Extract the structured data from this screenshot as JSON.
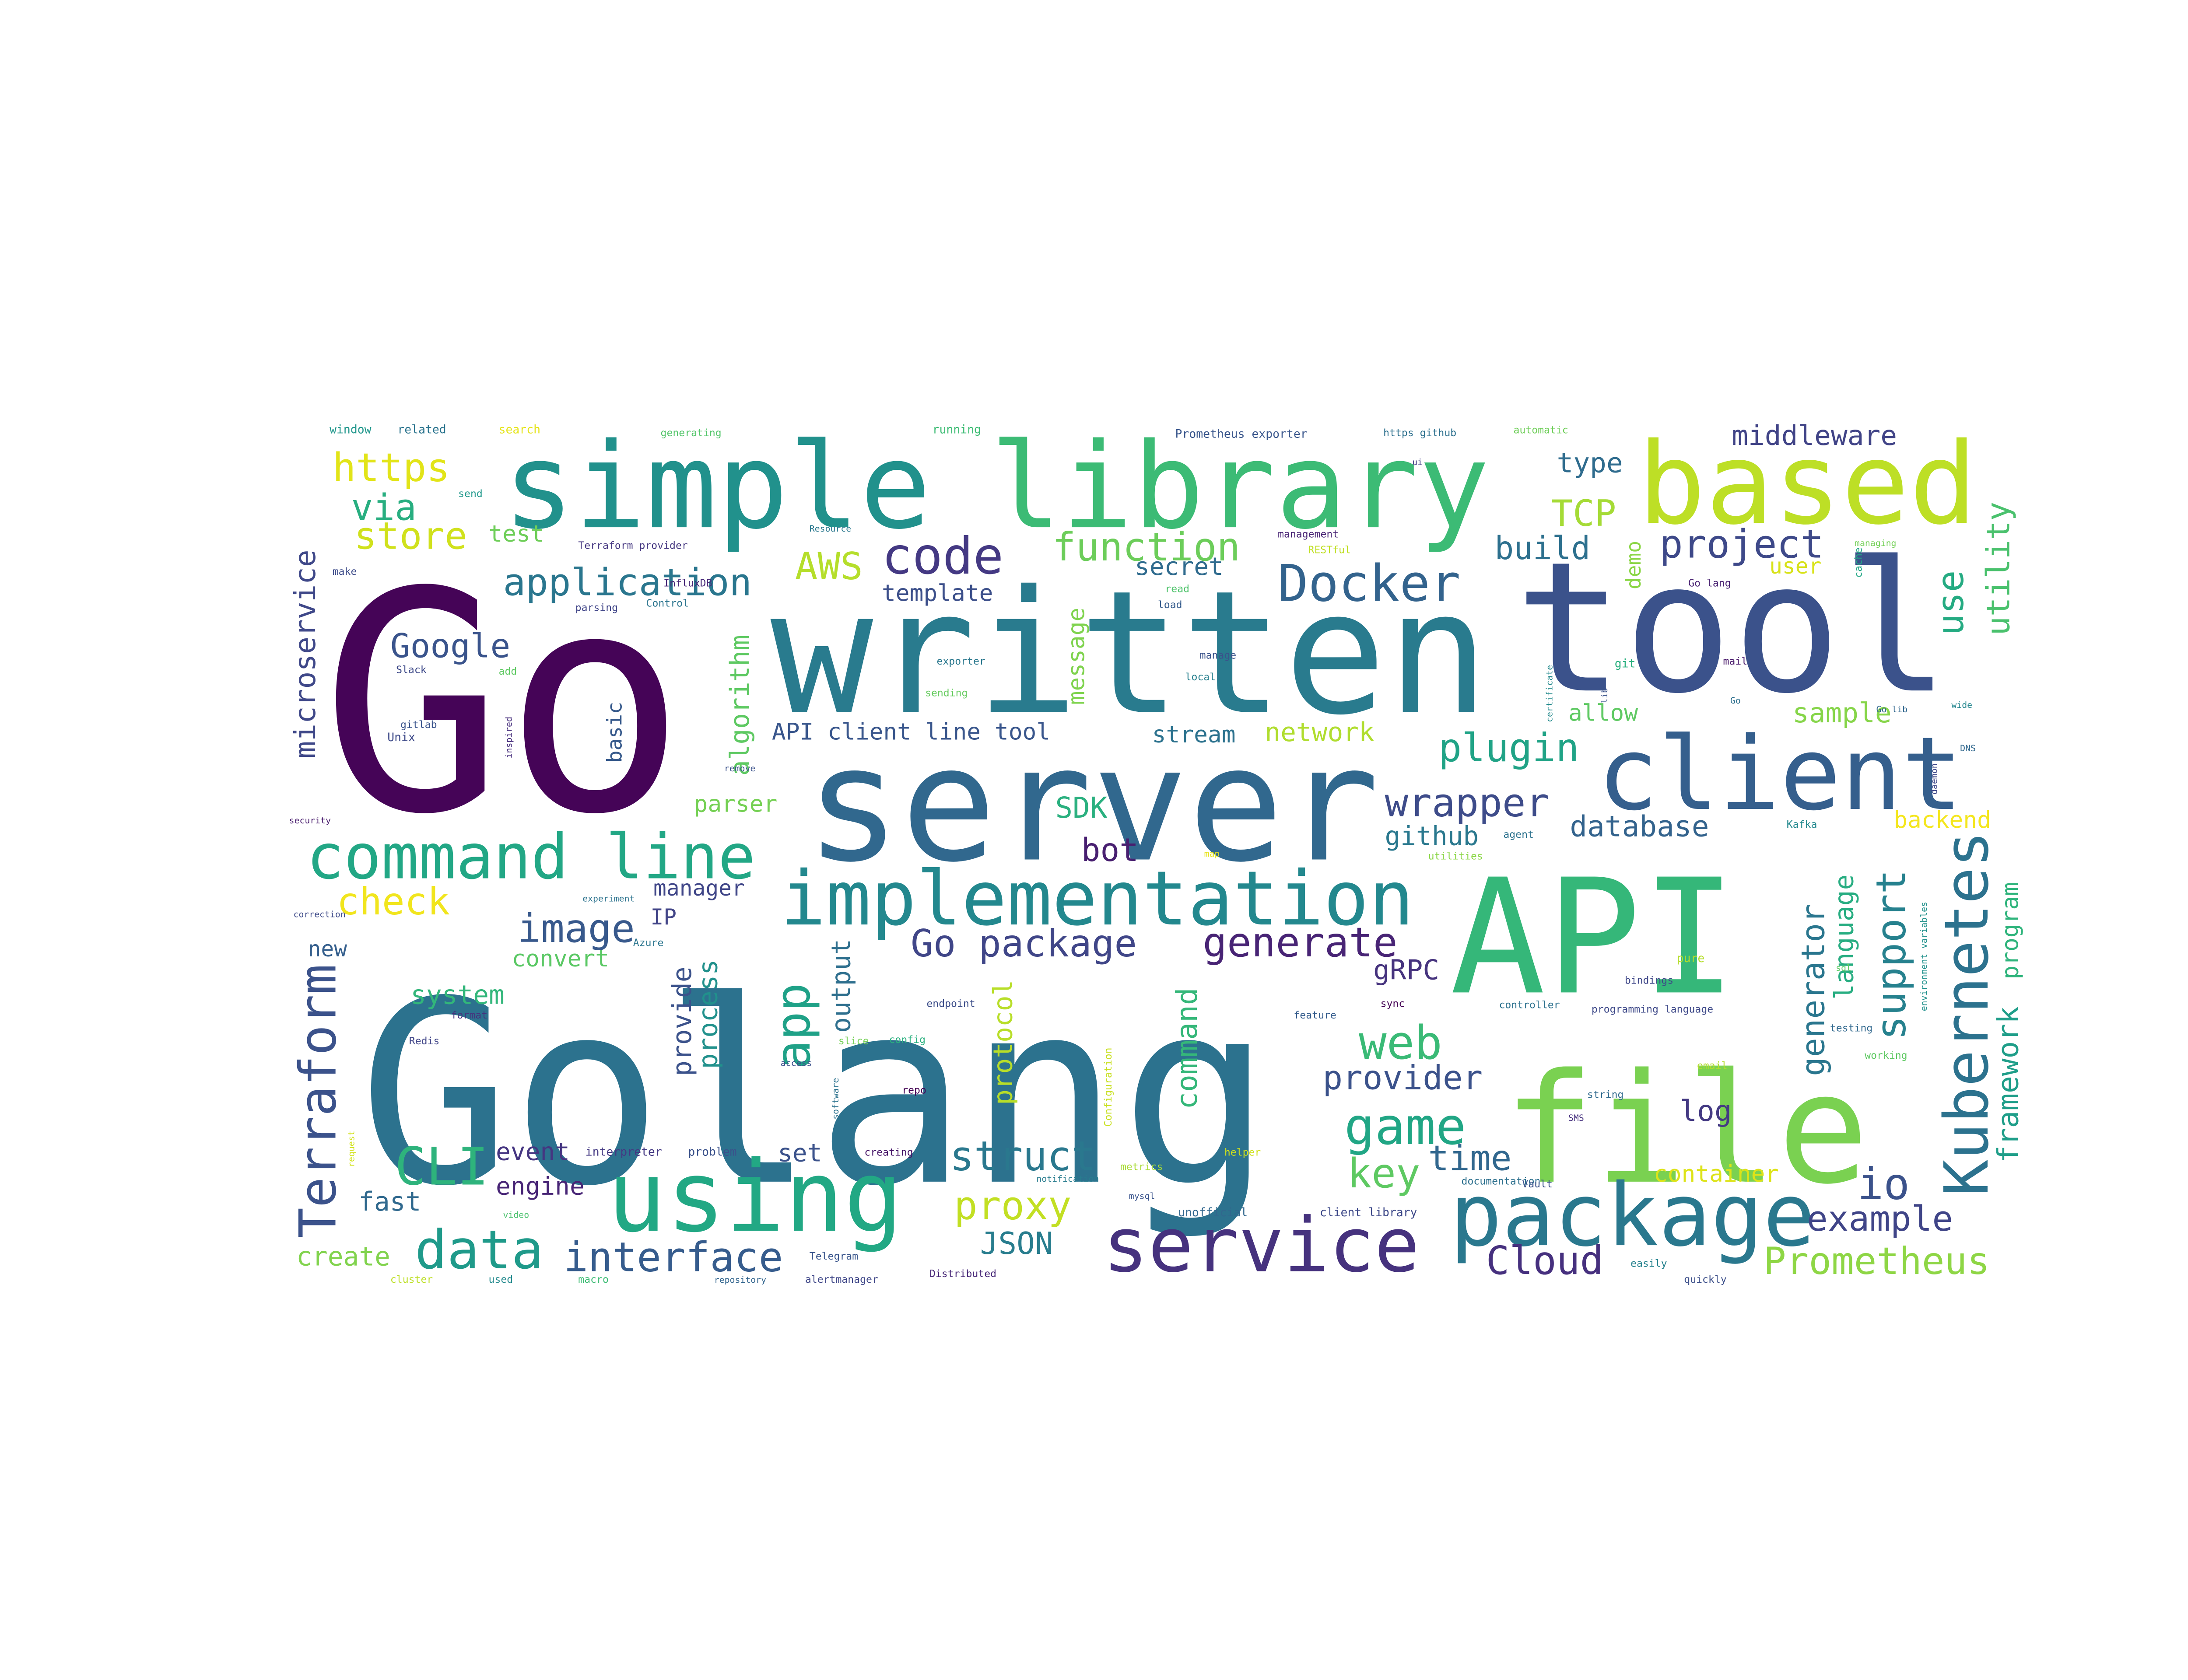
{
  "word_cloud": {
    "words": [
      {
        "text": "Go",
        "color": "#450457"
      },
      {
        "text": "Golang",
        "color": "#2c728e"
      },
      {
        "text": "written",
        "color": "#297b8e"
      },
      {
        "text": "tool",
        "color": "#3b528b"
      },
      {
        "text": "API",
        "color": "#35b779"
      },
      {
        "text": "server",
        "color": "#31688e"
      },
      {
        "text": "simple",
        "color": "#21918c"
      },
      {
        "text": "library",
        "color": "#3cbb75"
      },
      {
        "text": "based",
        "color": "#bddf26"
      },
      {
        "text": "file",
        "color": "#7ad151"
      },
      {
        "text": "client",
        "color": "#355f8d"
      },
      {
        "text": "using",
        "color": "#22a884"
      },
      {
        "text": "package",
        "color": "#2a788e"
      },
      {
        "text": "service",
        "color": "#46327e"
      },
      {
        "text": "implementation",
        "color": "#23888e"
      },
      {
        "text": "command line",
        "color": "#22a785"
      },
      {
        "text": "Kubernetes",
        "color": "#2c728e"
      },
      {
        "text": "Terraform",
        "color": "#3b528b"
      },
      {
        "text": "Docker",
        "color": "#33638d"
      },
      {
        "text": "code",
        "color": "#443983"
      },
      {
        "text": "data",
        "color": "#1f9a8a"
      },
      {
        "text": "CLI",
        "color": "#2eb37c"
      },
      {
        "text": "web",
        "color": "#3aba76"
      },
      {
        "text": "game",
        "color": "#21a685"
      },
      {
        "text": "app",
        "color": "#1fa187"
      },
      {
        "text": "application",
        "color": "#2a768e"
      },
      {
        "text": "Go package",
        "color": "#404688"
      },
      {
        "text": "generate",
        "color": "#482475"
      },
      {
        "text": "function",
        "color": "#6ccd5a"
      },
      {
        "text": "interface",
        "color": "#365c8d"
      },
      {
        "text": "support",
        "color": "#26818e"
      },
      {
        "text": "https",
        "color": "#e2e418"
      },
      {
        "text": "plugin",
        "color": "#20a386"
      },
      {
        "text": "wrapper",
        "color": "#3e4c8a"
      },
      {
        "text": "project",
        "color": "#3e4989"
      },
      {
        "text": "proxy",
        "color": "#c2df23"
      },
      {
        "text": "struct",
        "color": "#2a788e"
      },
      {
        "text": "Cloud",
        "color": "#46307e"
      },
      {
        "text": "Prometheus",
        "color": "#8ed645"
      },
      {
        "text": "example",
        "color": "#404588"
      },
      {
        "text": "image",
        "color": "#38598c"
      },
      {
        "text": "check",
        "color": "#f1e51d"
      },
      {
        "text": "store",
        "color": "#d0e11c"
      },
      {
        "text": "via",
        "color": "#28ae80"
      },
      {
        "text": "Google",
        "color": "#3a548c"
      },
      {
        "text": "microservice",
        "color": "#3f4889"
      },
      {
        "text": "AWS",
        "color": "#b5de2b"
      },
      {
        "text": "middleware",
        "color": "#414487"
      },
      {
        "text": "build",
        "color": "#2d708e"
      },
      {
        "text": "type",
        "color": "#2f6c8e"
      },
      {
        "text": "TCP",
        "color": "#a5db36"
      },
      {
        "text": "utility",
        "color": "#4ac16d"
      },
      {
        "text": "use",
        "color": "#25ab82"
      },
      {
        "text": "io",
        "color": "#3b528b"
      },
      {
        "text": "key",
        "color": "#5ec962"
      },
      {
        "text": "time",
        "color": "#31678e"
      },
      {
        "text": "provider",
        "color": "#3b528b"
      },
      {
        "text": "log",
        "color": "#443a83"
      },
      {
        "text": "database",
        "color": "#33638d"
      },
      {
        "text": "github",
        "color": "#2a788e"
      },
      {
        "text": "gRPC",
        "color": "#46337e"
      },
      {
        "text": "bot",
        "color": "#481f70"
      },
      {
        "text": "SDK",
        "color": "#2ab07f"
      },
      {
        "text": "generator",
        "color": "#2a768e"
      },
      {
        "text": "language",
        "color": "#27ad81"
      },
      {
        "text": "framework",
        "color": "#1f9e89"
      },
      {
        "text": "program",
        "color": "#2fb47c"
      },
      {
        "text": "protocol",
        "color": "#b8de29"
      },
      {
        "text": "output",
        "color": "#2e6f8e"
      },
      {
        "text": "provide",
        "color": "#3b528b"
      },
      {
        "text": "process",
        "color": "#21918c"
      },
      {
        "text": "command",
        "color": "#35b779"
      },
      {
        "text": "system",
        "color": "#32b67a"
      },
      {
        "text": "convert",
        "color": "#5ac864"
      },
      {
        "text": "new",
        "color": "#355f8d"
      },
      {
        "text": "event",
        "color": "#453581"
      },
      {
        "text": "engine",
        "color": "#482576"
      },
      {
        "text": "fast",
        "color": "#30698e"
      },
      {
        "text": "create",
        "color": "#81d34d"
      },
      {
        "text": "JSON",
        "color": "#287d8e"
      },
      {
        "text": "set",
        "color": "#3b528b"
      },
      {
        "text": "container",
        "color": "#dde318"
      },
      {
        "text": "sample",
        "color": "#86d549"
      },
      {
        "text": "backend",
        "color": "#f4e61e"
      },
      {
        "text": "allow",
        "color": "#5ec962"
      },
      {
        "text": "stream",
        "color": "#2c728e"
      },
      {
        "text": "network",
        "color": "#b0dd2f"
      },
      {
        "text": "API client line tool",
        "color": "#39568c"
      },
      {
        "text": "algorithm",
        "color": "#5ec962"
      },
      {
        "text": "parser",
        "color": "#75d054"
      },
      {
        "text": "template",
        "color": "#3c4f8a"
      },
      {
        "text": "message",
        "color": "#7fd34e"
      },
      {
        "text": "secret",
        "color": "#2f6b8e"
      },
      {
        "text": "manager",
        "color": "#404688"
      },
      {
        "text": "IP",
        "color": "#414487"
      },
      {
        "text": "basic",
        "color": "#375a8c"
      },
      {
        "text": "demo",
        "color": "#8bd646"
      },
      {
        "text": "user",
        "color": "#d8e219"
      },
      {
        "text": "test",
        "color": "#6ece58"
      },
      {
        "text": "parsing",
        "color": "#404588"
      },
      {
        "text": "Control",
        "color": "#2b748e"
      },
      {
        "text": "InfluxDB",
        "color": "#482878"
      },
      {
        "text": "Slack",
        "color": "#3e4a89"
      },
      {
        "text": "gitlab",
        "color": "#3a548c"
      },
      {
        "text": "security",
        "color": "#481b6d"
      },
      {
        "text": "window",
        "color": "#1f968b"
      },
      {
        "text": "related",
        "color": "#2b748e"
      },
      {
        "text": "search",
        "color": "#e5e419"
      },
      {
        "text": "generating",
        "color": "#52c569"
      },
      {
        "text": "running",
        "color": "#3dbc74"
      },
      {
        "text": "Prometheus exporter",
        "color": "#39568c"
      },
      {
        "text": "https github",
        "color": "#2d708e"
      },
      {
        "text": "automatic",
        "color": "#6ece58"
      },
      {
        "text": "Terraform provider",
        "color": "#453781"
      },
      {
        "text": "Go lang",
        "color": "#482071"
      },
      {
        "text": "managing",
        "color": "#73d056"
      },
      {
        "text": "management",
        "color": "#482374"
      },
      {
        "text": "manage",
        "color": "#3a538b"
      },
      {
        "text": "sending",
        "color": "#65cb5e"
      },
      {
        "text": "exporter",
        "color": "#2a788e"
      },
      {
        "text": "environment variables",
        "color": "#21918c"
      },
      {
        "text": "programming language",
        "color": "#3e4989"
      },
      {
        "text": "bindings",
        "color": "#3f4788"
      },
      {
        "text": "controller",
        "color": "#2c718e"
      },
      {
        "text": "feature",
        "color": "#365d8d"
      },
      {
        "text": "endpoint",
        "color": "#3d4e8a"
      },
      {
        "text": "config",
        "color": "#2ab07f"
      },
      {
        "text": "repo",
        "color": "#440154"
      },
      {
        "text": "string",
        "color": "#306a8e"
      },
      {
        "text": "testing",
        "color": "#31688e"
      },
      {
        "text": "working",
        "color": "#5ec962"
      },
      {
        "text": "email",
        "color": "#b2dd2d"
      },
      {
        "text": "Configuration",
        "color": "#c8e020"
      },
      {
        "text": "interpreter",
        "color": "#443983"
      },
      {
        "text": "problem",
        "color": "#3b528b"
      },
      {
        "text": "creating",
        "color": "#481769"
      },
      {
        "text": "notification",
        "color": "#287c8e"
      },
      {
        "text": "metrics",
        "color": "#a8db34"
      },
      {
        "text": "helper",
        "color": "#d0e11c"
      },
      {
        "text": "documentation",
        "color": "#2d708e"
      },
      {
        "text": "unofficial",
        "color": "#31678e"
      },
      {
        "text": "client library",
        "color": "#3e4989"
      },
      {
        "text": "Vault",
        "color": "#3b528b"
      },
      {
        "text": "Redis",
        "color": "#404588"
      },
      {
        "text": "format",
        "color": "#46337e"
      },
      {
        "text": "Telegram",
        "color": "#39558c"
      },
      {
        "text": "alertmanager",
        "color": "#3f4788"
      },
      {
        "text": "Distributed",
        "color": "#482878"
      },
      {
        "text": "repository",
        "color": "#32658e"
      },
      {
        "text": "macro",
        "color": "#3dbc74"
      },
      {
        "text": "used",
        "color": "#238a8d"
      },
      {
        "text": "cluster",
        "color": "#bddf26"
      },
      {
        "text": "quickly",
        "color": "#3c4f8a"
      },
      {
        "text": "easily",
        "color": "#26828e"
      },
      {
        "text": "local",
        "color": "#27808e"
      },
      {
        "text": "load",
        "color": "#365c8d"
      },
      {
        "text": "read",
        "color": "#4ec36b"
      },
      {
        "text": "add",
        "color": "#5ec962"
      },
      {
        "text": "send",
        "color": "#1f988b"
      },
      {
        "text": "git",
        "color": "#2ab07f"
      },
      {
        "text": "make",
        "color": "#3e4c8a"
      },
      {
        "text": "experiment",
        "color": "#2c738e"
      },
      {
        "text": "remove",
        "color": "#3b528b"
      },
      {
        "text": "inspired",
        "color": "#472f7d"
      },
      {
        "text": "Unix",
        "color": "#3e4a89"
      },
      {
        "text": "cache",
        "color": "#22a785"
      },
      {
        "text": "pure",
        "color": "#b5de2b"
      },
      {
        "text": "daemon",
        "color": "#3f4889"
      },
      {
        "text": "Kafka",
        "color": "#23898e"
      },
      {
        "text": "agent",
        "color": "#2c728e"
      },
      {
        "text": "utilities",
        "color": "#8bd646"
      },
      {
        "text": "access",
        "color": "#3c508b"
      },
      {
        "text": "Azure",
        "color": "#2b758e"
      },
      {
        "text": "slice",
        "color": "#74d055"
      },
      {
        "text": "software",
        "color": "#2c728e"
      },
      {
        "text": "map",
        "color": "#e7e419"
      },
      {
        "text": "video",
        "color": "#4ac16d"
      },
      {
        "text": "request",
        "color": "#d2e21b"
      },
      {
        "text": "correction",
        "color": "#3e4a89"
      },
      {
        "text": "sync",
        "color": "#440154"
      },
      {
        "text": "Resource",
        "color": "#2a788e"
      },
      {
        "text": "RESTful",
        "color": "#c0df25"
      },
      {
        "text": "certificate",
        "color": "#238a8d"
      },
      {
        "text": "lib",
        "color": "#3a538b"
      },
      {
        "text": "mail",
        "color": "#48186a"
      },
      {
        "text": "Go lib",
        "color": "#31678e"
      },
      {
        "text": "wide",
        "color": "#24868e"
      },
      {
        "text": "DNS",
        "color": "#31688e"
      },
      {
        "text": "mysql",
        "color": "#3a548c"
      },
      {
        "text": "SMS",
        "color": "#46307e"
      },
      {
        "text": "sql",
        "color": "#5ec962"
      },
      {
        "text": "Go",
        "color": "#2d708e"
      },
      {
        "text": "ui",
        "color": "#433e85"
      }
    ]
  }
}
